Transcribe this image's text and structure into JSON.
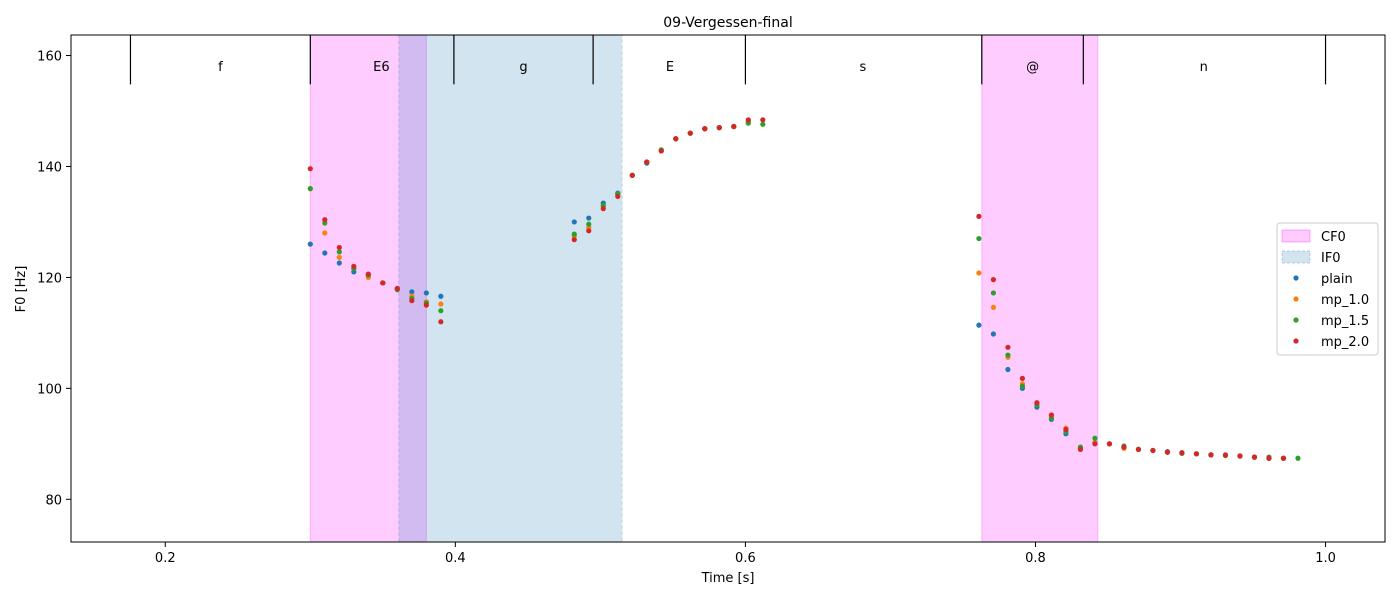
{
  "chart_data": {
    "type": "scatter",
    "title": "09-Vergessen-final",
    "xlabel": "Time [s]",
    "ylabel": "F0 [Hz]",
    "xlim": [
      0.135,
      1.041
    ],
    "ylim": [
      72.3,
      163.7
    ],
    "xticks": [
      0.2,
      0.4,
      0.6,
      0.8,
      1.0
    ],
    "xtick_labels": [
      "0.2",
      "0.4",
      "0.6",
      "0.8",
      "1.0"
    ],
    "yticks": [
      80,
      100,
      120,
      140,
      160
    ],
    "ytick_labels": [
      "80",
      "100",
      "120",
      "140",
      "160"
    ],
    "grid": false,
    "legend_position": "center-right",
    "segments": {
      "boundaries": [
        0.176,
        0.3,
        0.399,
        0.495,
        0.6,
        0.763,
        0.833,
        1.0
      ],
      "labels": [
        {
          "text": "f",
          "x": 0.238
        },
        {
          "text": "E6",
          "x": 0.349
        },
        {
          "text": "g",
          "x": 0.447
        },
        {
          "text": "E",
          "x": 0.548
        },
        {
          "text": "s",
          "x": 0.681
        },
        {
          "text": "@",
          "x": 0.798
        },
        {
          "text": "n",
          "x": 0.916
        }
      ],
      "tick_top": 163.7,
      "tick_bottom": 154.8
    },
    "regions": [
      {
        "name": "CF0",
        "x0": 0.3,
        "x1": 0.38,
        "color": "#ff00ff",
        "opacity": 0.2
      },
      {
        "name": "CF0",
        "x0": 0.763,
        "x1": 0.843,
        "color": "#ff00ff",
        "opacity": 0.2
      },
      {
        "name": "IF0",
        "x0": 0.361,
        "x1": 0.515,
        "color": "#1f77b4",
        "opacity": 0.2
      }
    ],
    "legend": [
      {
        "label": "CF0",
        "kind": "patch",
        "color": "#ff00ff"
      },
      {
        "label": "IF0",
        "kind": "patch",
        "color": "#1f77b4"
      },
      {
        "label": "plain",
        "kind": "marker",
        "color": "#1f77b4"
      },
      {
        "label": "mp_1.0",
        "kind": "marker",
        "color": "#ff7f0e"
      },
      {
        "label": "mp_1.5",
        "kind": "marker",
        "color": "#2ca02c"
      },
      {
        "label": "mp_2.0",
        "kind": "marker",
        "color": "#d62728"
      }
    ],
    "series": [
      {
        "name": "plain",
        "color": "#1f77b4",
        "points": [
          [
            0.3,
            126.0
          ],
          [
            0.31,
            124.4
          ],
          [
            0.32,
            122.6
          ],
          [
            0.33,
            121.0
          ],
          [
            0.34,
            120.4
          ],
          [
            0.35,
            119.0
          ],
          [
            0.36,
            118.0
          ],
          [
            0.37,
            117.4
          ],
          [
            0.38,
            117.2
          ],
          [
            0.39,
            116.6
          ],
          [
            0.482,
            130.0
          ],
          [
            0.492,
            130.7
          ],
          [
            0.502,
            133.4
          ],
          [
            0.512,
            135.2
          ],
          [
            0.522,
            138.4
          ],
          [
            0.532,
            140.6
          ],
          [
            0.542,
            142.8
          ],
          [
            0.552,
            145.0
          ],
          [
            0.562,
            146.0
          ],
          [
            0.572,
            146.8
          ],
          [
            0.582,
            147.0
          ],
          [
            0.592,
            147.2
          ],
          [
            0.602,
            148.0
          ],
          [
            0.761,
            111.4
          ],
          [
            0.771,
            109.8
          ],
          [
            0.781,
            103.4
          ],
          [
            0.791,
            100.0
          ],
          [
            0.801,
            96.6
          ],
          [
            0.811,
            94.4
          ],
          [
            0.821,
            91.8
          ],
          [
            0.831,
            89.2
          ],
          [
            0.841,
            90.2
          ],
          [
            0.851,
            90.0
          ],
          [
            0.861,
            89.4
          ],
          [
            0.871,
            89.0
          ],
          [
            0.881,
            88.8
          ],
          [
            0.891,
            88.6
          ],
          [
            0.901,
            88.4
          ],
          [
            0.911,
            88.2
          ],
          [
            0.921,
            88.0
          ],
          [
            0.931,
            87.9
          ],
          [
            0.941,
            87.8
          ],
          [
            0.951,
            87.6
          ],
          [
            0.961,
            87.4
          ],
          [
            0.971,
            87.4
          ]
        ]
      },
      {
        "name": "mp_1.0",
        "color": "#ff7f0e",
        "points": [
          [
            0.3,
            136.0
          ],
          [
            0.31,
            128.0
          ],
          [
            0.32,
            123.6
          ],
          [
            0.33,
            121.6
          ],
          [
            0.34,
            120.0
          ],
          [
            0.35,
            119.0
          ],
          [
            0.36,
            117.8
          ],
          [
            0.37,
            116.6
          ],
          [
            0.38,
            115.6
          ],
          [
            0.39,
            115.2
          ],
          [
            0.482,
            127.4
          ],
          [
            0.492,
            129.0
          ],
          [
            0.502,
            132.8
          ],
          [
            0.512,
            135.0
          ],
          [
            0.522,
            138.4
          ],
          [
            0.532,
            140.8
          ],
          [
            0.542,
            142.8
          ],
          [
            0.552,
            145.0
          ],
          [
            0.562,
            146.0
          ],
          [
            0.572,
            146.8
          ],
          [
            0.582,
            147.0
          ],
          [
            0.592,
            147.2
          ],
          [
            0.602,
            148.2
          ],
          [
            0.761,
            120.8
          ],
          [
            0.771,
            114.6
          ],
          [
            0.781,
            105.6
          ],
          [
            0.791,
            100.8
          ],
          [
            0.801,
            97.2
          ],
          [
            0.811,
            95.0
          ],
          [
            0.821,
            92.8
          ],
          [
            0.831,
            89.2
          ],
          [
            0.841,
            90.2
          ],
          [
            0.851,
            90.0
          ],
          [
            0.861,
            89.2
          ],
          [
            0.871,
            89.0
          ],
          [
            0.881,
            88.8
          ],
          [
            0.891,
            88.5
          ],
          [
            0.901,
            88.3
          ],
          [
            0.911,
            88.2
          ],
          [
            0.921,
            88.0
          ],
          [
            0.931,
            87.9
          ],
          [
            0.941,
            87.8
          ],
          [
            0.951,
            87.6
          ],
          [
            0.961,
            87.4
          ],
          [
            0.971,
            87.4
          ]
        ]
      },
      {
        "name": "mp_1.5",
        "color": "#2ca02c",
        "points": [
          [
            0.3,
            136.0
          ],
          [
            0.31,
            129.8
          ],
          [
            0.32,
            124.6
          ],
          [
            0.33,
            121.6
          ],
          [
            0.34,
            120.4
          ],
          [
            0.35,
            119.0
          ],
          [
            0.36,
            117.8
          ],
          [
            0.37,
            116.2
          ],
          [
            0.38,
            115.4
          ],
          [
            0.39,
            114.0
          ],
          [
            0.482,
            127.8
          ],
          [
            0.492,
            129.6
          ],
          [
            0.502,
            133.0
          ],
          [
            0.512,
            135.0
          ],
          [
            0.522,
            138.4
          ],
          [
            0.532,
            140.8
          ],
          [
            0.542,
            143.0
          ],
          [
            0.552,
            145.0
          ],
          [
            0.562,
            146.0
          ],
          [
            0.572,
            146.8
          ],
          [
            0.582,
            147.0
          ],
          [
            0.592,
            147.2
          ],
          [
            0.602,
            147.8
          ],
          [
            0.612,
            147.6
          ],
          [
            0.761,
            127.0
          ],
          [
            0.771,
            117.2
          ],
          [
            0.781,
            106.0
          ],
          [
            0.791,
            100.4
          ],
          [
            0.801,
            97.0
          ],
          [
            0.811,
            94.6
          ],
          [
            0.821,
            92.2
          ],
          [
            0.831,
            89.4
          ],
          [
            0.841,
            91.0
          ],
          [
            0.851,
            90.0
          ],
          [
            0.861,
            89.6
          ],
          [
            0.871,
            89.0
          ],
          [
            0.881,
            88.8
          ],
          [
            0.891,
            88.5
          ],
          [
            0.901,
            88.3
          ],
          [
            0.911,
            88.2
          ],
          [
            0.921,
            88.0
          ],
          [
            0.931,
            87.9
          ],
          [
            0.941,
            87.8
          ],
          [
            0.951,
            87.6
          ],
          [
            0.961,
            87.6
          ],
          [
            0.971,
            87.4
          ],
          [
            0.981,
            87.4
          ]
        ]
      },
      {
        "name": "mp_2.0",
        "color": "#d62728",
        "points": [
          [
            0.3,
            139.6
          ],
          [
            0.31,
            130.4
          ],
          [
            0.32,
            125.4
          ],
          [
            0.33,
            122.0
          ],
          [
            0.34,
            120.6
          ],
          [
            0.35,
            119.0
          ],
          [
            0.36,
            118.0
          ],
          [
            0.37,
            115.8
          ],
          [
            0.38,
            115.0
          ],
          [
            0.39,
            112.0
          ],
          [
            0.482,
            126.8
          ],
          [
            0.492,
            128.4
          ],
          [
            0.502,
            132.4
          ],
          [
            0.512,
            134.6
          ],
          [
            0.522,
            138.4
          ],
          [
            0.532,
            140.8
          ],
          [
            0.542,
            142.8
          ],
          [
            0.552,
            145.0
          ],
          [
            0.562,
            146.0
          ],
          [
            0.572,
            146.8
          ],
          [
            0.582,
            147.0
          ],
          [
            0.592,
            147.2
          ],
          [
            0.602,
            148.4
          ],
          [
            0.612,
            148.4
          ],
          [
            0.761,
            131.0
          ],
          [
            0.771,
            119.6
          ],
          [
            0.781,
            107.4
          ],
          [
            0.791,
            101.8
          ],
          [
            0.801,
            97.4
          ],
          [
            0.811,
            95.2
          ],
          [
            0.821,
            92.6
          ],
          [
            0.831,
            89.0
          ],
          [
            0.841,
            90.0
          ],
          [
            0.851,
            90.0
          ],
          [
            0.861,
            89.4
          ],
          [
            0.871,
            89.0
          ],
          [
            0.881,
            88.8
          ],
          [
            0.891,
            88.5
          ],
          [
            0.901,
            88.4
          ],
          [
            0.911,
            88.2
          ],
          [
            0.921,
            88.0
          ],
          [
            0.931,
            88.0
          ],
          [
            0.941,
            87.8
          ],
          [
            0.951,
            87.6
          ],
          [
            0.961,
            87.4
          ],
          [
            0.971,
            87.4
          ]
        ]
      }
    ]
  }
}
